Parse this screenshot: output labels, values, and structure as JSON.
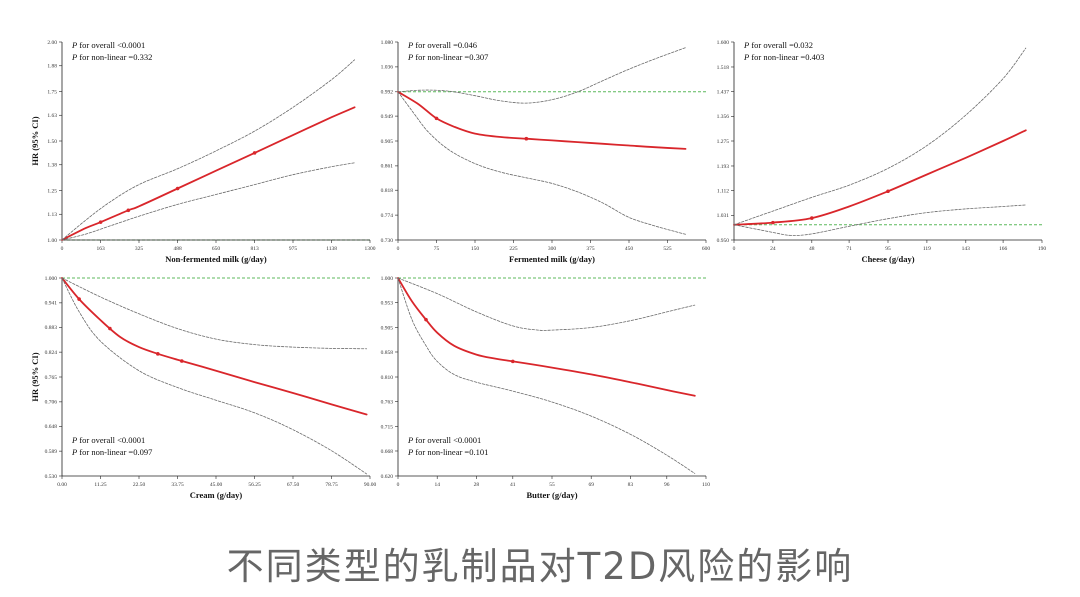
{
  "colors": {
    "curve": "#d9262b",
    "ci": "#6a6a6a",
    "reference": "#5cb85c",
    "axis": "#222222"
  },
  "caption": "不同类型的乳制品对T2D风险的影响",
  "chart_data": [
    {
      "type": "line",
      "xlabel": "Non-fermented milk (g/day)",
      "ylabel": "HR (95% CI)",
      "annotations": [
        "P for overall <0.0001",
        "P for non-linear =0.332"
      ],
      "annotation_position": "top-left",
      "xlim": [
        0,
        1300
      ],
      "ylim": [
        1.0,
        2.0
      ],
      "xticks": [
        0,
        163,
        325,
        488,
        650,
        813,
        975,
        1138,
        1300
      ],
      "yticks": [
        1.0,
        1.13,
        1.25,
        1.38,
        1.5,
        1.63,
        1.75,
        1.88,
        2.0
      ],
      "ytick_labels": [
        "1.00",
        "1.13",
        "1.25",
        "1.38",
        "1.50",
        "1.63",
        "1.75",
        "1.88",
        "2.00"
      ],
      "reference_line": 1.0,
      "series": [
        {
          "role": "hr",
          "x": [
            0,
            100,
            163,
            280,
            325,
            488,
            650,
            813,
            975,
            1138,
            1235
          ],
          "y": [
            1.0,
            1.06,
            1.09,
            1.15,
            1.17,
            1.26,
            1.35,
            1.44,
            1.53,
            1.62,
            1.67
          ]
        },
        {
          "role": "upper",
          "x": [
            0,
            100,
            200,
            325,
            488,
            650,
            813,
            975,
            1138,
            1235
          ],
          "y": [
            1.0,
            1.1,
            1.19,
            1.28,
            1.36,
            1.45,
            1.55,
            1.67,
            1.81,
            1.91
          ]
        },
        {
          "role": "lower",
          "x": [
            0,
            100,
            200,
            325,
            488,
            650,
            813,
            975,
            1138,
            1235
          ],
          "y": [
            1.0,
            1.03,
            1.07,
            1.12,
            1.18,
            1.23,
            1.28,
            1.33,
            1.37,
            1.39
          ]
        }
      ],
      "markers": [
        {
          "x": 163,
          "y": 1.09
        },
        {
          "x": 280,
          "y": 1.15
        },
        {
          "x": 488,
          "y": 1.26
        },
        {
          "x": 813,
          "y": 1.44
        }
      ]
    },
    {
      "type": "line",
      "xlabel": "Fermented milk (g/day)",
      "ylabel": "",
      "annotations": [
        "P for overall =0.046",
        "P for non-linear =0.307"
      ],
      "annotation_position": "top-left",
      "xlim": [
        0,
        600
      ],
      "ylim": [
        0.73,
        1.08
      ],
      "xticks": [
        0,
        75,
        150,
        225,
        300,
        375,
        450,
        525,
        600
      ],
      "yticks": [
        0.73,
        0.774,
        0.818,
        0.861,
        0.905,
        0.949,
        0.992,
        1.036,
        1.08
      ],
      "ytick_labels": [
        "0.730",
        "0.774",
        "0.818",
        "0.861",
        "0.905",
        "0.949",
        "0.992",
        "1.036",
        "1.080"
      ],
      "reference_line": 0.992,
      "series": [
        {
          "role": "hr",
          "x": [
            0,
            40,
            75,
            110,
            150,
            200,
            250,
            300,
            350,
            400,
            450,
            500,
            560
          ],
          "y": [
            0.992,
            0.97,
            0.945,
            0.93,
            0.918,
            0.912,
            0.909,
            0.906,
            0.903,
            0.9,
            0.897,
            0.894,
            0.891
          ]
        },
        {
          "role": "upper",
          "x": [
            0,
            50,
            100,
            150,
            200,
            250,
            300,
            350,
            400,
            450,
            500,
            560
          ],
          "y": [
            0.992,
            0.995,
            0.993,
            0.985,
            0.976,
            0.972,
            0.978,
            0.992,
            1.012,
            1.032,
            1.05,
            1.07
          ]
        },
        {
          "role": "lower",
          "x": [
            0,
            30,
            60,
            100,
            150,
            200,
            250,
            300,
            350,
            400,
            450,
            500,
            560
          ],
          "y": [
            0.992,
            0.955,
            0.92,
            0.889,
            0.865,
            0.85,
            0.84,
            0.83,
            0.815,
            0.795,
            0.77,
            0.755,
            0.74
          ]
        }
      ],
      "markers": [
        {
          "x": 75,
          "y": 0.945
        },
        {
          "x": 250,
          "y": 0.909
        }
      ]
    },
    {
      "type": "line",
      "xlabel": "Cheese (g/day)",
      "ylabel": "",
      "annotations": [
        "P for overall =0.032",
        "P for non-linear =0.403"
      ],
      "annotation_position": "top-left",
      "xlim": [
        0,
        190
      ],
      "ylim": [
        0.95,
        1.6
      ],
      "xticks": [
        0,
        24,
        48,
        71,
        95,
        119,
        143,
        166,
        190
      ],
      "yticks": [
        0.95,
        1.031,
        1.112,
        1.193,
        1.275,
        1.356,
        1.437,
        1.518,
        1.6
      ],
      "ytick_labels": [
        "0.950",
        "1.031",
        "1.112",
        "1.193",
        "1.275",
        "1.356",
        "1.437",
        "1.518",
        "1.600"
      ],
      "reference_line": 1.0,
      "series": [
        {
          "role": "hr",
          "x": [
            0,
            24,
            48,
            71,
            95,
            119,
            143,
            166,
            180
          ],
          "y": [
            1.0,
            1.007,
            1.022,
            1.06,
            1.11,
            1.165,
            1.22,
            1.275,
            1.31
          ]
        },
        {
          "role": "upper",
          "x": [
            0,
            24,
            48,
            71,
            95,
            119,
            143,
            166,
            180
          ],
          "y": [
            1.0,
            1.045,
            1.09,
            1.13,
            1.185,
            1.26,
            1.36,
            1.48,
            1.58
          ]
        },
        {
          "role": "lower",
          "x": [
            0,
            24,
            35,
            48,
            71,
            95,
            119,
            143,
            166,
            180
          ],
          "y": [
            1.0,
            0.975,
            0.965,
            0.97,
            0.995,
            1.02,
            1.04,
            1.052,
            1.06,
            1.065
          ]
        }
      ],
      "markers": [
        {
          "x": 24,
          "y": 1.007
        },
        {
          "x": 48,
          "y": 1.022
        },
        {
          "x": 95,
          "y": 1.11
        }
      ]
    },
    {
      "type": "line",
      "xlabel": "Cream (g/day)",
      "ylabel": "HR (95% CI)",
      "annotations": [
        "P for overall <0.0001",
        "P for non-linear =0.097"
      ],
      "annotation_position": "bottom-left",
      "xlim": [
        0,
        90
      ],
      "ylim": [
        0.53,
        1.0
      ],
      "xticks": [
        0,
        11.25,
        22.5,
        33.75,
        45,
        56.25,
        67.5,
        78.75,
        90
      ],
      "xtick_labels": [
        "0.00",
        "11.25",
        "22.50",
        "33.75",
        "45.00",
        "56.25",
        "67.50",
        "78.75",
        "90.00"
      ],
      "yticks": [
        0.53,
        0.589,
        0.648,
        0.706,
        0.765,
        0.824,
        0.883,
        0.941,
        1.0
      ],
      "ytick_labels": [
        "0.530",
        "0.589",
        "0.648",
        "0.706",
        "0.765",
        "0.824",
        "0.883",
        "0.941",
        "1.000"
      ],
      "reference_line": 1.0,
      "series": [
        {
          "role": "hr",
          "x": [
            0,
            5,
            11.25,
            17,
            22.5,
            28,
            33.75,
            45,
            56.25,
            67.5,
            78.75,
            89
          ],
          "y": [
            1.0,
            0.95,
            0.9,
            0.86,
            0.836,
            0.82,
            0.806,
            0.78,
            0.753,
            0.727,
            0.7,
            0.676
          ]
        },
        {
          "role": "upper",
          "x": [
            0,
            11.25,
            22.5,
            33.75,
            45,
            56.25,
            67.5,
            78.75,
            89
          ],
          "y": [
            1.0,
            0.955,
            0.915,
            0.88,
            0.855,
            0.842,
            0.836,
            0.833,
            0.832
          ]
        },
        {
          "role": "lower",
          "x": [
            0,
            5,
            11.25,
            22.5,
            33.75,
            45,
            56.25,
            67.5,
            78.75,
            89
          ],
          "y": [
            1.0,
            0.92,
            0.85,
            0.78,
            0.74,
            0.71,
            0.68,
            0.64,
            0.59,
            0.535
          ]
        }
      ],
      "markers": [
        {
          "x": 5,
          "y": 0.95
        },
        {
          "x": 14,
          "y": 0.88
        },
        {
          "x": 28,
          "y": 0.82
        },
        {
          "x": 35,
          "y": 0.803
        }
      ]
    },
    {
      "type": "line",
      "xlabel": "Butter (g/day)",
      "ylabel": "",
      "annotations": [
        "P for overall <0.0001",
        "P for non-linear =0.101"
      ],
      "annotation_position": "bottom-left",
      "xlim": [
        0,
        110
      ],
      "ylim": [
        0.62,
        1.0
      ],
      "xticks": [
        0,
        14,
        28,
        41,
        55,
        69,
        83,
        96,
        110
      ],
      "yticks": [
        0.62,
        0.668,
        0.715,
        0.763,
        0.81,
        0.858,
        0.905,
        0.953,
        1.0
      ],
      "ytick_labels": [
        "0.620",
        "0.668",
        "0.715",
        "0.763",
        "0.810",
        "0.858",
        "0.905",
        "0.953",
        "1.000"
      ],
      "reference_line": 1.0,
      "series": [
        {
          "role": "hr",
          "x": [
            0,
            5,
            10,
            14,
            20,
            28,
            35,
            41,
            55,
            69,
            83,
            96,
            106
          ],
          "y": [
            1.0,
            0.955,
            0.92,
            0.895,
            0.87,
            0.853,
            0.845,
            0.84,
            0.828,
            0.815,
            0.8,
            0.785,
            0.774
          ]
        },
        {
          "role": "upper",
          "x": [
            0,
            14,
            28,
            41,
            50,
            55,
            69,
            83,
            96,
            106
          ],
          "y": [
            1.0,
            0.97,
            0.935,
            0.908,
            0.9,
            0.9,
            0.905,
            0.918,
            0.935,
            0.948
          ]
        },
        {
          "role": "lower",
          "x": [
            0,
            5,
            10,
            14,
            20,
            28,
            41,
            55,
            69,
            83,
            96,
            106
          ],
          "y": [
            1.0,
            0.92,
            0.87,
            0.84,
            0.815,
            0.8,
            0.783,
            0.762,
            0.735,
            0.7,
            0.66,
            0.625
          ]
        }
      ],
      "markers": [
        {
          "x": 10,
          "y": 0.92
        },
        {
          "x": 41,
          "y": 0.84
        }
      ]
    }
  ]
}
